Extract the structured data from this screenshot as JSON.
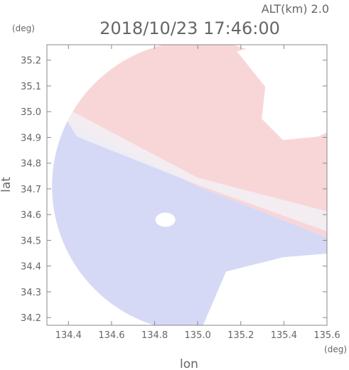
{
  "header": {
    "altitude_label": "ALT(km)  2.0",
    "timestamp": "2018/10/23  17:46:00",
    "lat_unit": "(deg)",
    "lon_unit": "(deg)"
  },
  "chart_data": {
    "type": "heatmap",
    "title": "2018/10/23  17:46:00",
    "subtitle": "ALT(km)  2.0",
    "xlabel": "lon",
    "ylabel": "lat",
    "xlim": [
      134.3,
      135.6
    ],
    "ylim": [
      34.17,
      35.26
    ],
    "x_ticks": [
      134.4,
      134.6,
      134.8,
      135.0,
      135.2,
      135.4,
      135.6
    ],
    "x_tick_labels": [
      "134.4",
      "134.6",
      "134.8",
      "135.0",
      "135.2",
      "135.4",
      "135.6"
    ],
    "y_ticks": [
      34.2,
      34.3,
      34.4,
      34.5,
      34.6,
      34.7,
      34.8,
      34.9,
      35.0,
      35.1,
      35.2
    ],
    "y_tick_labels": [
      "34.2",
      "34.3",
      "34.4",
      "34.5",
      "34.6",
      "34.7",
      "34.8",
      "34.9",
      "35.0",
      "35.1",
      "35.2"
    ],
    "grid": false,
    "radar_center": {
      "lon": 135.0,
      "lat": 34.71
    },
    "colors": {
      "receding": "#f8d6d8",
      "approaching": "#d6d9f6",
      "near_zero": "#f2f0f6",
      "axis": "#888888"
    }
  }
}
